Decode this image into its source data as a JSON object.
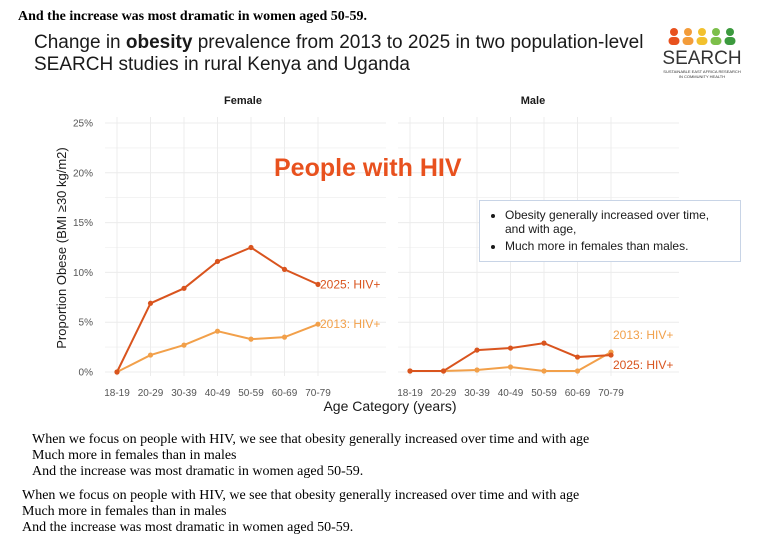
{
  "top_note": "And the increase was most dramatic in women aged 50-59.",
  "title": {
    "prefix": "Change in ",
    "bold": "obesity",
    "suffix": " prevalence from 2013 to 2025 in two population-level SEARCH studies in rural Kenya and Uganda"
  },
  "logo": {
    "text": "SEARCH",
    "subtitle_line1": "SUSTAINABLE EAST AFRICA RESEARCH",
    "subtitle_line2": "IN COMMUNITY HEALTH",
    "dot_colors": [
      "#e8511e",
      "#f39c3a",
      "#f2c12e",
      "#7cbf4a",
      "#3c9a3e"
    ]
  },
  "hiv_banner": "People with HIV",
  "callout": {
    "bullets": [
      "Obesity generally increased over time, and with age,",
      "Much more in females than males."
    ]
  },
  "colors": {
    "series_2025": "#d9541e",
    "series_2013": "#f2a04a",
    "grid": "#ececec",
    "axis_text": "#555555"
  },
  "chart_data": [
    {
      "type": "line",
      "panel_title": "Female",
      "categories": [
        "18-19",
        "20-29",
        "30-39",
        "40-49",
        "50-59",
        "60-69",
        "70-79"
      ],
      "ylabel": "Proportion Obese (BMI ≥30 kg/m2)",
      "ylim": [
        0,
        25
      ],
      "yticks": [
        "0%",
        "5%",
        "10%",
        "15%",
        "20%",
        "25%"
      ],
      "grid": true,
      "series": [
        {
          "name": "2025: HIV+",
          "values": [
            0,
            6.9,
            8.4,
            11.1,
            12.5,
            10.3,
            8.8
          ]
        },
        {
          "name": "2013: HIV+",
          "values": [
            0,
            1.7,
            2.7,
            4.1,
            3.3,
            3.5,
            4.8
          ]
        }
      ]
    },
    {
      "type": "line",
      "panel_title": "Male",
      "categories": [
        "18-19",
        "20-29",
        "30-39",
        "40-49",
        "50-59",
        "60-69",
        "70-79"
      ],
      "ylim": [
        0,
        25
      ],
      "grid": true,
      "series": [
        {
          "name": "2025: HIV+",
          "values": [
            0.1,
            0.1,
            2.2,
            2.4,
            2.9,
            1.5,
            1.7
          ]
        },
        {
          "name": "2013: HIV+",
          "values": [
            0.1,
            0.1,
            0.2,
            0.5,
            0.1,
            0.1,
            2.0
          ]
        }
      ]
    }
  ],
  "xlabel": "Age Category (years)",
  "paragraph1": [
    "When we focus on people with HIV, we see that obesity generally increased over time and with age",
    "Much more in females than in males",
    "And the increase was most dramatic in women aged 50-59."
  ],
  "paragraph2": [
    "When we focus on people with HIV, we see that obesity generally increased over time and with age",
    "Much more in females than in males",
    "And the increase was most dramatic in women aged 50-59."
  ]
}
